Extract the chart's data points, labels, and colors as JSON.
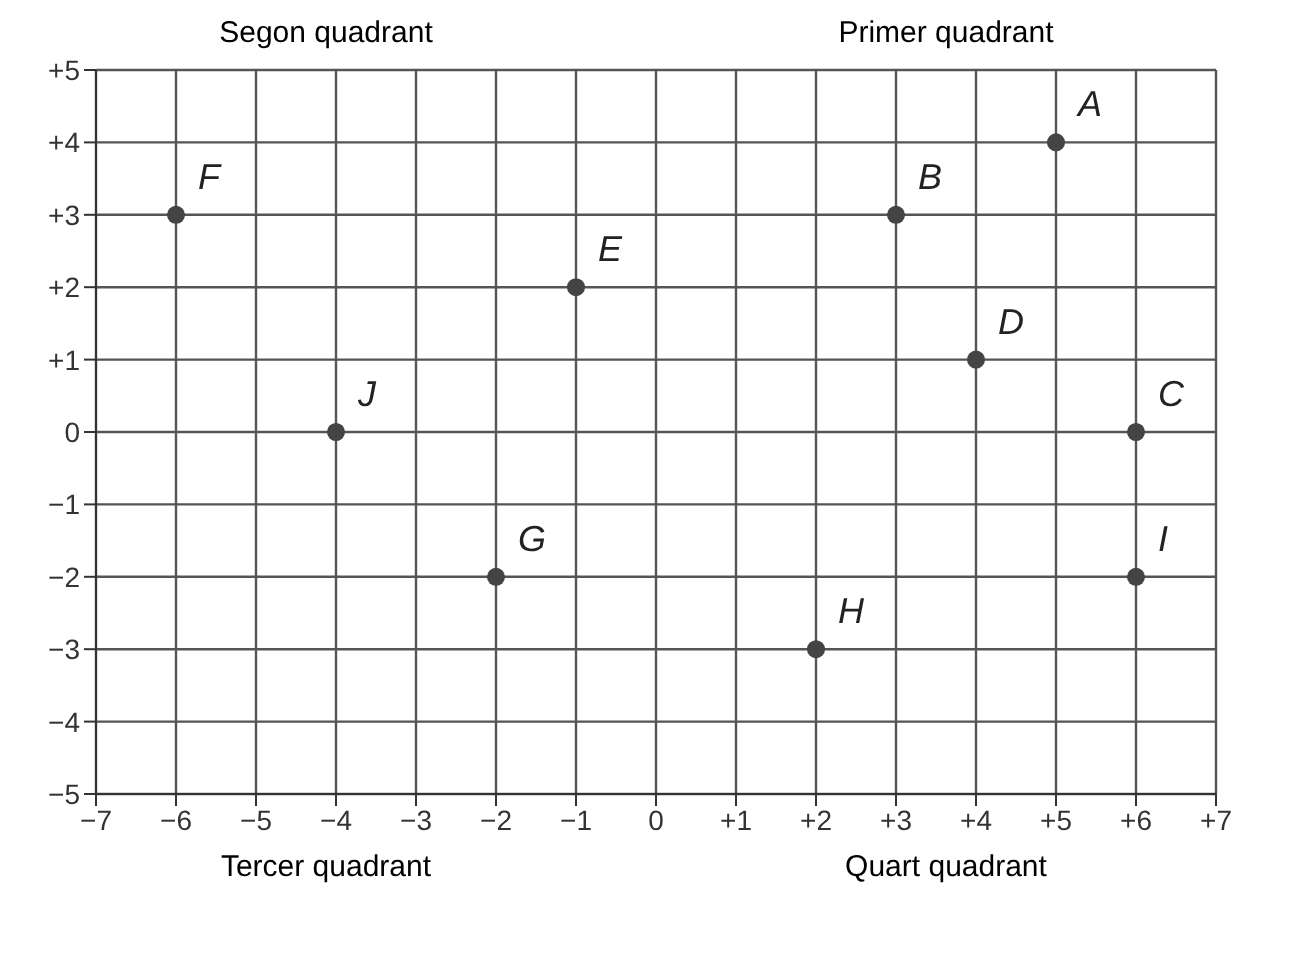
{
  "chart_data": {
    "type": "scatter",
    "x": [
      5,
      3,
      6,
      4,
      -1,
      -6,
      -2,
      2,
      6,
      -4
    ],
    "values": [
      4,
      3,
      0,
      1,
      2,
      3,
      -2,
      -3,
      -2,
      0
    ],
    "color": "#444444",
    "marker": "circle",
    "grid": true,
    "legend": false,
    "xlim": [
      -7,
      7
    ],
    "xticks": [
      {
        "value": -7,
        "label": "−7"
      },
      {
        "value": -6,
        "label": "−6"
      },
      {
        "value": -5,
        "label": "−5"
      },
      {
        "value": -4,
        "label": "−4"
      },
      {
        "value": -3,
        "label": "−3"
      },
      {
        "value": -2,
        "label": "−2"
      },
      {
        "value": -1,
        "label": "−1"
      },
      0,
      {
        "value": 1,
        "label": "+1"
      },
      {
        "value": 2,
        "label": "+2"
      },
      {
        "value": 3,
        "label": "+3"
      },
      {
        "value": 4,
        "label": "+4"
      },
      {
        "value": 5,
        "label": "+5"
      },
      {
        "value": 6,
        "label": "+6"
      },
      {
        "value": 7,
        "label": "+7"
      }
    ],
    "ylim": [
      -5,
      5
    ],
    "yticks": [
      {
        "value": -5,
        "label": "−5"
      },
      {
        "value": -4,
        "label": "−4"
      },
      {
        "value": -3,
        "label": "−3"
      },
      {
        "value": -2,
        "label": "−2"
      },
      {
        "value": -1,
        "label": "−1"
      },
      0,
      {
        "value": 1,
        "label": "+1"
      },
      {
        "value": 2,
        "label": "+2"
      },
      {
        "value": 3,
        "label": "+3"
      },
      {
        "value": 4,
        "label": "+4"
      },
      {
        "value": 5,
        "label": "+5"
      }
    ],
    "annotations": [
      "Segon quadrant",
      "Primer quadrant",
      "Tercer quadrant",
      "Quart quadrant",
      {
        "text": "A",
        "x": 5,
        "y": 4
      },
      {
        "text": "B",
        "x": 3,
        "y": 3
      },
      {
        "text": "C",
        "x": 6,
        "y": 0
      },
      {
        "text": "D",
        "x": 4,
        "y": 1
      },
      {
        "text": "E",
        "x": -1,
        "y": 2
      },
      {
        "text": "F",
        "x": -6,
        "y": 3
      },
      {
        "text": "G",
        "x": -2,
        "y": -2
      },
      {
        "text": "H",
        "x": 2,
        "y": -3
      },
      {
        "text": "I",
        "x": 6,
        "y": -2
      },
      {
        "text": "J",
        "x": -4,
        "y": 0
      }
    ]
  }
}
